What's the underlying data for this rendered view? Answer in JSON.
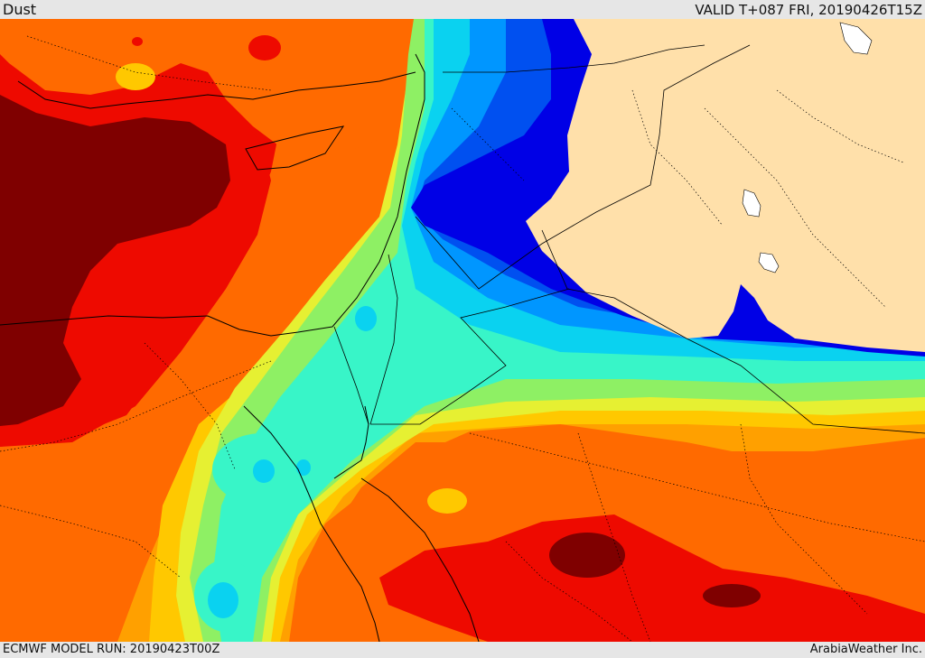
{
  "header": {
    "title": "Dust",
    "valid_time": "VALID T+087 FRI, 20190426T15Z"
  },
  "footer": {
    "model_run": "ECMWF MODEL RUN: 20190423T00Z",
    "credit": "ArabiaWeather Inc."
  },
  "map": {
    "field": "dust concentration",
    "palette": {
      "darkred": "#7f0000",
      "red": "#ee0a00",
      "orange": "#ff6a00",
      "amber": "#ffa000",
      "yellow": "#ffc800",
      "lightyellow": "#e6f032",
      "green": "#8ef064",
      "aqua": "#38f5c8",
      "cyan": "#0ad2f0",
      "skyblue": "#0096ff",
      "blue": "#0050f0",
      "navy": "#0000e6",
      "land_no_data": "#ffe0aa",
      "water": "#ffffff",
      "border": "#000000"
    }
  }
}
